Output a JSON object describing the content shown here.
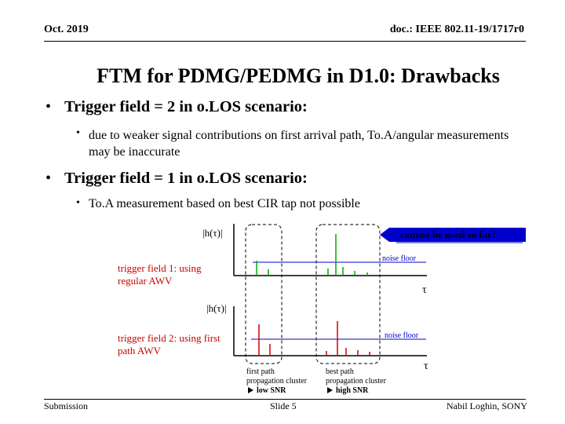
{
  "header": {
    "date": "Oct. 2019",
    "doc_id": "doc.: IEEE 802.11-19/1717r0"
  },
  "title": "FTM for PDMG/PEDMG in D1.0: Drawbacks",
  "bullets": [
    {
      "text": "Trigger field = 2 in o.LOS scenario:",
      "sub": [
        "due to weaker signal contributions on first arrival path, To.A/angular measurements may be inaccurate"
      ]
    },
    {
      "text": "Trigger field = 1 in o.LOS scenario:",
      "sub": [
        "To.A measurement based on best CIR tap not possible"
      ]
    }
  ],
  "figure": {
    "axis_label": "|h(τ)|",
    "callout": "cannot be used so far!",
    "noise_floor": "noise floor",
    "tau": "τ",
    "plot1_label": "trigger field 1: using regular AWV",
    "plot2_label": "trigger field 2: using first path AWV",
    "cluster1": [
      "first path",
      "propagation cluster",
      "low SNR"
    ],
    "cluster2": [
      "best path",
      "propagation cluster",
      "high SNR"
    ],
    "colors": {
      "accent": "#0000cc",
      "red": "#cc0000",
      "green": "#00aa00"
    }
  },
  "footer": {
    "left": "Submission",
    "center": "Slide 5",
    "right": "Nabil Loghin, SONY"
  }
}
